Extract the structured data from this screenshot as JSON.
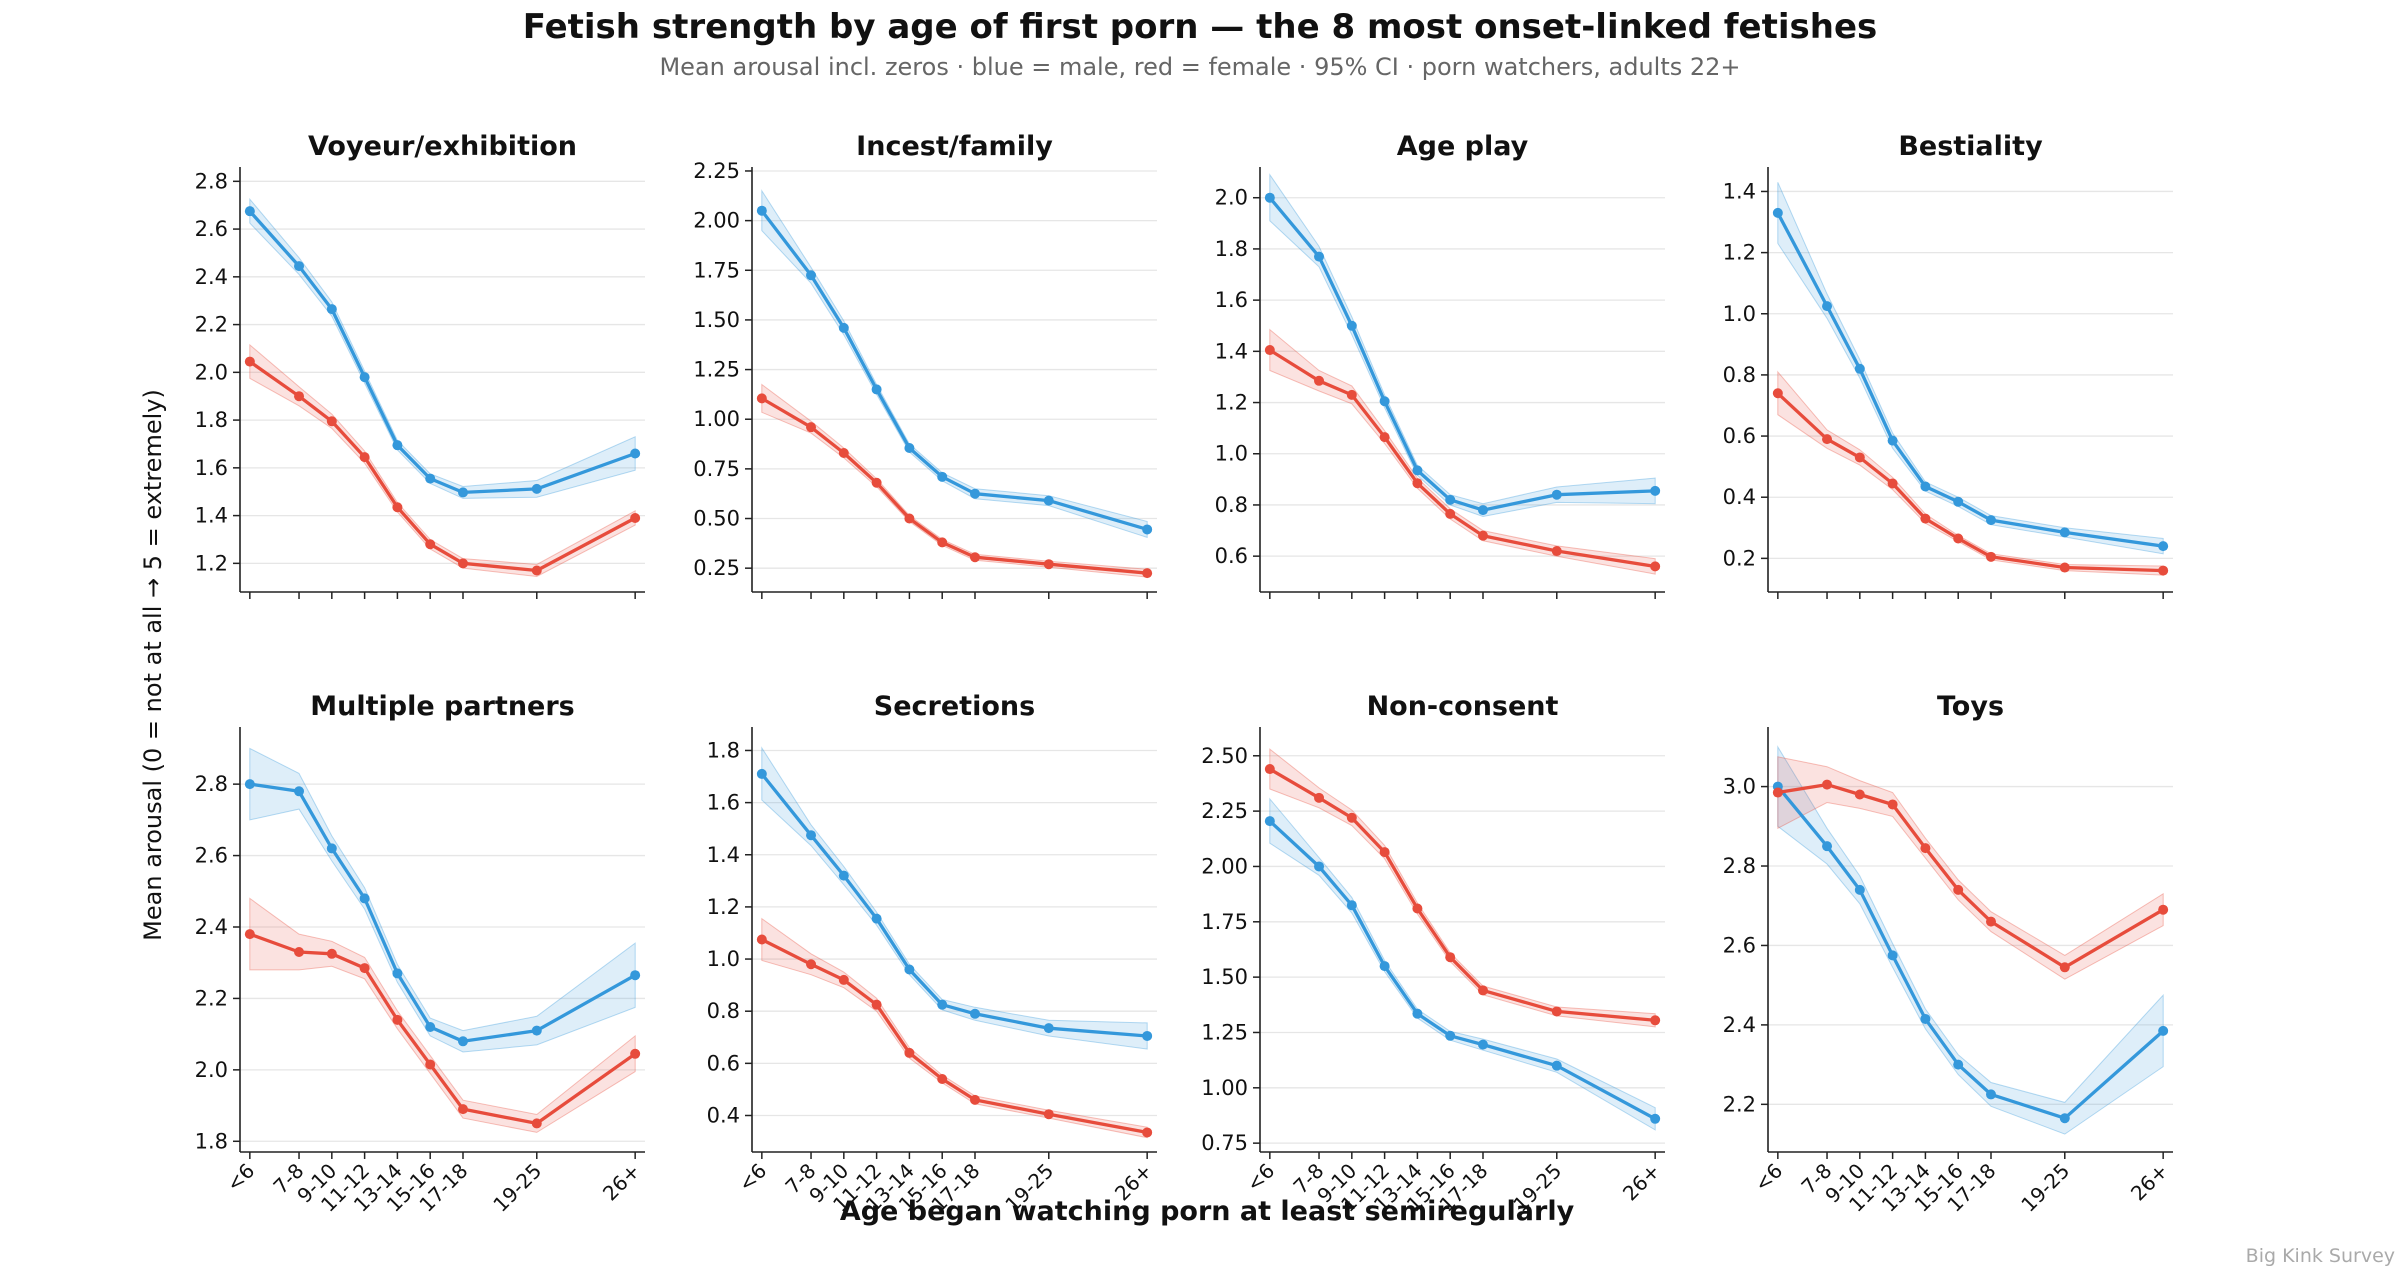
{
  "title": "Fetish strength by age of first porn — the 8 most onset-linked fetishes",
  "subtitle": "Mean arousal incl. zeros · blue = male, red = female · 95% CI · porn watchers, adults 22+",
  "ylabel": "Mean arousal (0 = not at all → 5 = extremely)",
  "xlabel": "Age began watching porn at least semiregularly",
  "watermark": "Big Kink Survey",
  "colors": {
    "male": "#3498db",
    "female": "#e74c3c",
    "axis": "#222222",
    "grid": "#e6e6e6",
    "muted": "#666666",
    "watermark": "#aaaaaa"
  },
  "chart_data": [
    {
      "type": "line",
      "title": "Voyeur/exhibition",
      "x": [
        4.5,
        7.5,
        9.5,
        11.5,
        13.5,
        15.5,
        17.5,
        22,
        28
      ],
      "categories": [
        "<6",
        "7-8",
        "9-10",
        "11-12",
        "13-14",
        "15-16",
        "17-18",
        "19-25",
        "26+"
      ],
      "ylim": [
        1.08,
        2.86
      ],
      "yticks": [
        "1.2",
        "1.4",
        "1.6",
        "1.8",
        "2.0",
        "2.2",
        "2.4",
        "2.6",
        "2.8"
      ],
      "grid": true,
      "series": [
        {
          "name": "male",
          "values": [
            2.675,
            2.445,
            2.265,
            1.98,
            1.695,
            1.555,
            1.497,
            1.512,
            1.66
          ],
          "ci": [
            0.05,
            0.035,
            0.03,
            0.025,
            0.02,
            0.02,
            0.025,
            0.035,
            0.07
          ]
        },
        {
          "name": "female",
          "values": [
            2.045,
            1.9,
            1.795,
            1.645,
            1.435,
            1.28,
            1.2,
            1.17,
            1.39
          ],
          "ci": [
            0.07,
            0.04,
            0.03,
            0.025,
            0.02,
            0.02,
            0.02,
            0.025,
            0.03
          ]
        }
      ]
    },
    {
      "type": "line",
      "title": "Incest/family",
      "x": [
        4.5,
        7.5,
        9.5,
        11.5,
        13.5,
        15.5,
        17.5,
        22,
        28
      ],
      "categories": [
        "<6",
        "7-8",
        "9-10",
        "11-12",
        "13-14",
        "15-16",
        "17-18",
        "19-25",
        "26+"
      ],
      "ylim": [
        0.13,
        2.27
      ],
      "yticks": [
        "0.25",
        "0.50",
        "0.75",
        "1.00",
        "1.25",
        "1.50",
        "1.75",
        "2.00",
        "2.25"
      ],
      "grid": true,
      "series": [
        {
          "name": "male",
          "values": [
            2.05,
            1.725,
            1.46,
            1.15,
            0.855,
            0.71,
            0.625,
            0.59,
            0.445
          ],
          "ci": [
            0.1,
            0.04,
            0.035,
            0.025,
            0.02,
            0.02,
            0.025,
            0.025,
            0.04
          ]
        },
        {
          "name": "female",
          "values": [
            1.105,
            0.96,
            0.83,
            0.68,
            0.5,
            0.38,
            0.305,
            0.27,
            0.225
          ],
          "ci": [
            0.07,
            0.03,
            0.025,
            0.02,
            0.015,
            0.015,
            0.015,
            0.015,
            0.02
          ]
        }
      ]
    },
    {
      "type": "line",
      "title": "Age play",
      "x": [
        4.5,
        7.5,
        9.5,
        11.5,
        13.5,
        15.5,
        17.5,
        22,
        28
      ],
      "categories": [
        "<6",
        "7-8",
        "9-10",
        "11-12",
        "13-14",
        "15-16",
        "17-18",
        "19-25",
        "26+"
      ],
      "ylim": [
        0.46,
        2.12
      ],
      "yticks": [
        "0.6",
        "0.8",
        "1.0",
        "1.2",
        "1.4",
        "1.6",
        "1.8",
        "2.0"
      ],
      "grid": true,
      "series": [
        {
          "name": "male",
          "values": [
            2.0,
            1.77,
            1.5,
            1.205,
            0.935,
            0.82,
            0.78,
            0.84,
            0.855
          ],
          "ci": [
            0.09,
            0.04,
            0.035,
            0.025,
            0.02,
            0.02,
            0.025,
            0.03,
            0.05
          ]
        },
        {
          "name": "female",
          "values": [
            1.405,
            1.285,
            1.23,
            1.065,
            0.885,
            0.765,
            0.68,
            0.62,
            0.56
          ],
          "ci": [
            0.08,
            0.04,
            0.035,
            0.025,
            0.02,
            0.02,
            0.02,
            0.02,
            0.03
          ]
        }
      ]
    },
    {
      "type": "line",
      "title": "Bestiality",
      "x": [
        4.5,
        7.5,
        9.5,
        11.5,
        13.5,
        15.5,
        17.5,
        22,
        28
      ],
      "categories": [
        "<6",
        "7-8",
        "9-10",
        "11-12",
        "13-14",
        "15-16",
        "17-18",
        "19-25",
        "26+"
      ],
      "ylim": [
        0.09,
        1.48
      ],
      "yticks": [
        "0.2",
        "0.4",
        "0.6",
        "0.8",
        "1.0",
        "1.2",
        "1.4"
      ],
      "grid": true,
      "series": [
        {
          "name": "male",
          "values": [
            1.33,
            1.025,
            0.82,
            0.585,
            0.435,
            0.385,
            0.325,
            0.285,
            0.24
          ],
          "ci": [
            0.1,
            0.04,
            0.03,
            0.025,
            0.015,
            0.015,
            0.015,
            0.015,
            0.025
          ]
        },
        {
          "name": "female",
          "values": [
            0.74,
            0.59,
            0.53,
            0.445,
            0.33,
            0.265,
            0.205,
            0.17,
            0.16
          ],
          "ci": [
            0.07,
            0.03,
            0.025,
            0.02,
            0.015,
            0.01,
            0.01,
            0.01,
            0.015
          ]
        }
      ]
    },
    {
      "type": "line",
      "title": "Multiple partners",
      "x": [
        4.5,
        7.5,
        9.5,
        11.5,
        13.5,
        15.5,
        17.5,
        22,
        28
      ],
      "categories": [
        "<6",
        "7-8",
        "9-10",
        "11-12",
        "13-14",
        "15-16",
        "17-18",
        "19-25",
        "26+"
      ],
      "ylim": [
        1.77,
        2.96
      ],
      "yticks": [
        "1.8",
        "2.0",
        "2.2",
        "2.4",
        "2.6",
        "2.8"
      ],
      "grid": true,
      "series": [
        {
          "name": "male",
          "values": [
            2.8,
            2.78,
            2.62,
            2.48,
            2.27,
            2.12,
            2.08,
            2.11,
            2.265
          ],
          "ci": [
            0.1,
            0.05,
            0.035,
            0.03,
            0.025,
            0.025,
            0.03,
            0.04,
            0.09
          ]
        },
        {
          "name": "female",
          "values": [
            2.38,
            2.33,
            2.325,
            2.285,
            2.14,
            2.015,
            1.89,
            1.85,
            2.045
          ],
          "ci": [
            0.1,
            0.05,
            0.035,
            0.03,
            0.025,
            0.025,
            0.025,
            0.025,
            0.05
          ]
        }
      ]
    },
    {
      "type": "line",
      "title": "Secretions",
      "x": [
        4.5,
        7.5,
        9.5,
        11.5,
        13.5,
        15.5,
        17.5,
        22,
        28
      ],
      "categories": [
        "<6",
        "7-8",
        "9-10",
        "11-12",
        "13-14",
        "15-16",
        "17-18",
        "19-25",
        "26+"
      ],
      "ylim": [
        0.26,
        1.89
      ],
      "yticks": [
        "0.4",
        "0.6",
        "0.8",
        "1.0",
        "1.2",
        "1.4",
        "1.6",
        "1.8"
      ],
      "grid": true,
      "series": [
        {
          "name": "male",
          "values": [
            1.71,
            1.475,
            1.32,
            1.155,
            0.96,
            0.825,
            0.79,
            0.735,
            0.705
          ],
          "ci": [
            0.1,
            0.04,
            0.035,
            0.025,
            0.02,
            0.02,
            0.025,
            0.03,
            0.05
          ]
        },
        {
          "name": "female",
          "values": [
            1.075,
            0.98,
            0.92,
            0.825,
            0.64,
            0.54,
            0.46,
            0.405,
            0.335
          ],
          "ci": [
            0.08,
            0.04,
            0.03,
            0.025,
            0.02,
            0.015,
            0.015,
            0.015,
            0.02
          ]
        }
      ]
    },
    {
      "type": "line",
      "title": "Non-consent",
      "x": [
        4.5,
        7.5,
        9.5,
        11.5,
        13.5,
        15.5,
        17.5,
        22,
        28
      ],
      "categories": [
        "<6",
        "7-8",
        "9-10",
        "11-12",
        "13-14",
        "15-16",
        "17-18",
        "19-25",
        "26+"
      ],
      "ylim": [
        0.71,
        2.63
      ],
      "yticks": [
        "0.75",
        "1.00",
        "1.25",
        "1.50",
        "1.75",
        "2.00",
        "2.25",
        "2.50"
      ],
      "grid": true,
      "series": [
        {
          "name": "male",
          "values": [
            2.205,
            2.0,
            1.825,
            1.55,
            1.335,
            1.235,
            1.195,
            1.1,
            0.86
          ],
          "ci": [
            0.1,
            0.04,
            0.035,
            0.025,
            0.02,
            0.02,
            0.025,
            0.03,
            0.05
          ]
        },
        {
          "name": "female",
          "values": [
            2.44,
            2.31,
            2.22,
            2.065,
            1.81,
            1.59,
            1.44,
            1.345,
            1.305
          ],
          "ci": [
            0.09,
            0.045,
            0.035,
            0.03,
            0.025,
            0.02,
            0.02,
            0.02,
            0.03
          ]
        }
      ]
    },
    {
      "type": "line",
      "title": "Toys",
      "x": [
        4.5,
        7.5,
        9.5,
        11.5,
        13.5,
        15.5,
        17.5,
        22,
        28
      ],
      "categories": [
        "<6",
        "7-8",
        "9-10",
        "11-12",
        "13-14",
        "15-16",
        "17-18",
        "19-25",
        "26+"
      ],
      "ylim": [
        2.08,
        3.15
      ],
      "yticks": [
        "2.2",
        "2.4",
        "2.6",
        "2.8",
        "3.0"
      ],
      "grid": true,
      "series": [
        {
          "name": "male",
          "values": [
            3.0,
            2.85,
            2.74,
            2.575,
            2.415,
            2.3,
            2.225,
            2.165,
            2.385
          ],
          "ci": [
            0.1,
            0.045,
            0.035,
            0.03,
            0.025,
            0.025,
            0.03,
            0.04,
            0.09
          ]
        },
        {
          "name": "female",
          "values": [
            2.985,
            3.005,
            2.98,
            2.955,
            2.845,
            2.74,
            2.66,
            2.545,
            2.69
          ],
          "ci": [
            0.09,
            0.045,
            0.035,
            0.03,
            0.025,
            0.025,
            0.025,
            0.03,
            0.04
          ]
        }
      ]
    }
  ]
}
